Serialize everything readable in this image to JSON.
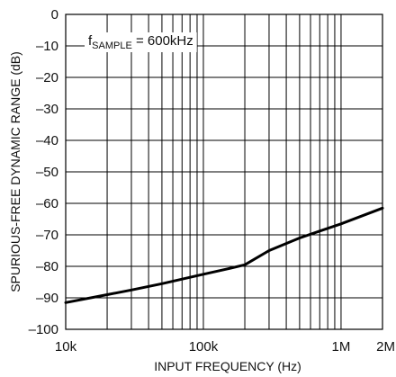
{
  "chart_data": {
    "type": "line",
    "title": "",
    "xlabel": "INPUT FREQUENCY (Hz)",
    "ylabel": "SPURIOUS-FREE DYNAMIC RANGE (dB)",
    "x_scale": "log",
    "xlim": [
      10000,
      2000000
    ],
    "ylim": [
      -100,
      0
    ],
    "x_ticks": [
      {
        "value": 10000,
        "label": "10k"
      },
      {
        "value": 100000,
        "label": "100k"
      },
      {
        "value": 1000000,
        "label": "1M"
      },
      {
        "value": 2000000,
        "label": "2M"
      }
    ],
    "y_ticks": [
      {
        "value": 0,
        "label": "0"
      },
      {
        "value": -10,
        "label": "–10"
      },
      {
        "value": -20,
        "label": "–20"
      },
      {
        "value": -30,
        "label": "–30"
      },
      {
        "value": -40,
        "label": "–40"
      },
      {
        "value": -50,
        "label": "–50"
      },
      {
        "value": -60,
        "label": "–60"
      },
      {
        "value": -70,
        "label": "–70"
      },
      {
        "value": -80,
        "label": "–80"
      },
      {
        "value": -90,
        "label": "–90"
      },
      {
        "value": -100,
        "label": "–100"
      }
    ],
    "grid": true,
    "annotation": {
      "prefix": "f",
      "subscript": "SAMPLE",
      "suffix": " = 600kHz"
    },
    "series": [
      {
        "x": [
          10000,
          20000,
          30000,
          50000,
          100000,
          150000,
          200000,
          300000,
          500000,
          700000,
          1000000,
          2000000
        ],
        "y": [
          -91.5,
          -89.0,
          -87.5,
          -85.5,
          -82.5,
          -80.8,
          -79.5,
          -75.0,
          -71.0,
          -68.8,
          -66.5,
          -61.5
        ]
      }
    ],
    "line_color": "#000000",
    "grid_color": "#000000"
  }
}
